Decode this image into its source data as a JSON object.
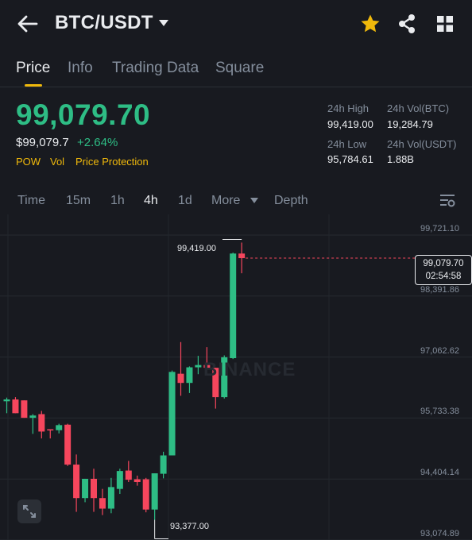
{
  "header": {
    "pair": "BTC/USDT",
    "icons": {
      "back": "back-arrow-icon",
      "dropdown": "chevron-down-icon",
      "favorite": "star-icon",
      "share": "share-icon",
      "menu": "grid-icon"
    },
    "favorite_color": "#f0b90b"
  },
  "tabs": [
    {
      "label": "Price",
      "active": true
    },
    {
      "label": "Info",
      "active": false
    },
    {
      "label": "Trading Data",
      "active": false
    },
    {
      "label": "Square",
      "active": false
    }
  ],
  "price": {
    "last": "99,079.70",
    "usd": "$99,079.7",
    "change": "+2.64%",
    "tags": [
      "POW",
      "Vol",
      "Price Protection"
    ],
    "up_color": "#2ebd85",
    "down_color": "#f6465d"
  },
  "stats": {
    "high_label": "24h High",
    "high_value": "99,419.00",
    "low_label": "24h Low",
    "low_value": "95,784.61",
    "vol_btc_label": "24h Vol(BTC)",
    "vol_btc_value": "19,284.79",
    "vol_usdt_label": "24h Vol(USDT)",
    "vol_usdt_value": "1.88B"
  },
  "intervals": [
    {
      "label": "Time",
      "active": false
    },
    {
      "label": "15m",
      "active": false
    },
    {
      "label": "1h",
      "active": false
    },
    {
      "label": "4h",
      "active": true
    },
    {
      "label": "1d",
      "active": false
    },
    {
      "label": "More",
      "active": false
    },
    {
      "label": "Depth",
      "active": false
    }
  ],
  "chart_data": {
    "type": "candlestick",
    "y_ticks": [
      "99,721.10",
      "98,391.86",
      "97,062.62",
      "95,733.38",
      "94,404.14",
      "93,074.89"
    ],
    "ylim": [
      93074.89,
      99721.1
    ],
    "last_price": "99,079.70",
    "countdown": "02:54:58",
    "high_marker": "99,419.00",
    "low_marker": "93,377.00",
    "watermark": "BINANCE",
    "candles": [
      {
        "o": 95960,
        "h": 96040,
        "l": 95700,
        "c": 96000
      },
      {
        "o": 96000,
        "h": 96050,
        "l": 95700,
        "c": 95700
      },
      {
        "o": 95980,
        "h": 95980,
        "l": 95600,
        "c": 95600
      },
      {
        "o": 95600,
        "h": 95680,
        "l": 95250,
        "c": 95650
      },
      {
        "o": 95680,
        "h": 95750,
        "l": 95150,
        "c": 95300
      },
      {
        "o": 95350,
        "h": 95350,
        "l": 95150,
        "c": 95340
      },
      {
        "o": 95330,
        "h": 95470,
        "l": 95260,
        "c": 95440
      },
      {
        "o": 95450,
        "h": 95470,
        "l": 94550,
        "c": 94580
      },
      {
        "o": 94580,
        "h": 94800,
        "l": 93550,
        "c": 93850
      },
      {
        "o": 93850,
        "h": 94270,
        "l": 93760,
        "c": 94270
      },
      {
        "o": 94270,
        "h": 94490,
        "l": 93550,
        "c": 93850
      },
      {
        "o": 93850,
        "h": 94050,
        "l": 93480,
        "c": 93620
      },
      {
        "o": 93620,
        "h": 94290,
        "l": 93520,
        "c": 94090
      },
      {
        "o": 94050,
        "h": 94490,
        "l": 93940,
        "c": 94440
      },
      {
        "o": 94450,
        "h": 94660,
        "l": 94200,
        "c": 94250
      },
      {
        "o": 94260,
        "h": 94340,
        "l": 94120,
        "c": 94200
      },
      {
        "o": 94260,
        "h": 94290,
        "l": 93540,
        "c": 93600
      },
      {
        "o": 93600,
        "h": 94390,
        "l": 93377,
        "c": 94390
      },
      {
        "o": 94380,
        "h": 94860,
        "l": 94280,
        "c": 94780
      },
      {
        "o": 94780,
        "h": 96630,
        "l": 94790,
        "c": 96600
      },
      {
        "o": 96560,
        "h": 97250,
        "l": 96080,
        "c": 96360
      },
      {
        "o": 96360,
        "h": 96720,
        "l": 96140,
        "c": 96700
      },
      {
        "o": 96700,
        "h": 96950,
        "l": 96550,
        "c": 96750
      },
      {
        "o": 96750,
        "h": 97140,
        "l": 96620,
        "c": 96690
      },
      {
        "o": 96690,
        "h": 96690,
        "l": 95800,
        "c": 96050
      },
      {
        "o": 96050,
        "h": 96960,
        "l": 96020,
        "c": 96920
      },
      {
        "o": 96900,
        "h": 99200,
        "l": 96880,
        "c": 99180
      },
      {
        "o": 99180,
        "h": 99419,
        "l": 98750,
        "c": 99079.7
      }
    ]
  }
}
